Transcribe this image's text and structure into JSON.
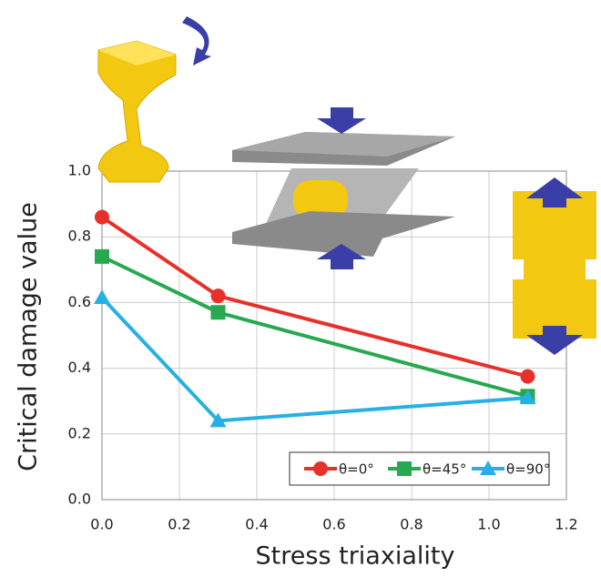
{
  "chart_data": {
    "type": "line",
    "x_label": "Stress triaxiality",
    "y_label": "Critical damage value",
    "x": [
      0,
      0.3,
      1.1
    ],
    "series": [
      {
        "name": "θ=0°",
        "color": "#e8302a",
        "marker": "circle",
        "values": [
          0.86,
          0.62,
          0.375
        ]
      },
      {
        "name": "θ=45°",
        "color": "#27a94f",
        "marker": "square",
        "values": [
          0.74,
          0.57,
          0.315
        ]
      },
      {
        "name": "θ=90°",
        "color": "#27b0e6",
        "marker": "triangle",
        "values": [
          0.615,
          0.24,
          0.31
        ]
      }
    ],
    "xlim": [
      0,
      1.2
    ],
    "ylim": [
      0,
      1
    ],
    "xticks": [
      {
        "value": 0,
        "label": "0.0"
      },
      0.2,
      0.4,
      0.6,
      0.8,
      {
        "value": 1,
        "label": "1.0"
      },
      1.2
    ],
    "yticks": [
      {
        "value": 0,
        "label": "0.0"
      },
      0.2,
      0.4,
      0.6,
      0.8,
      {
        "value": 1,
        "label": "1.0"
      }
    ],
    "grid": true,
    "legend": "lower right"
  }
}
